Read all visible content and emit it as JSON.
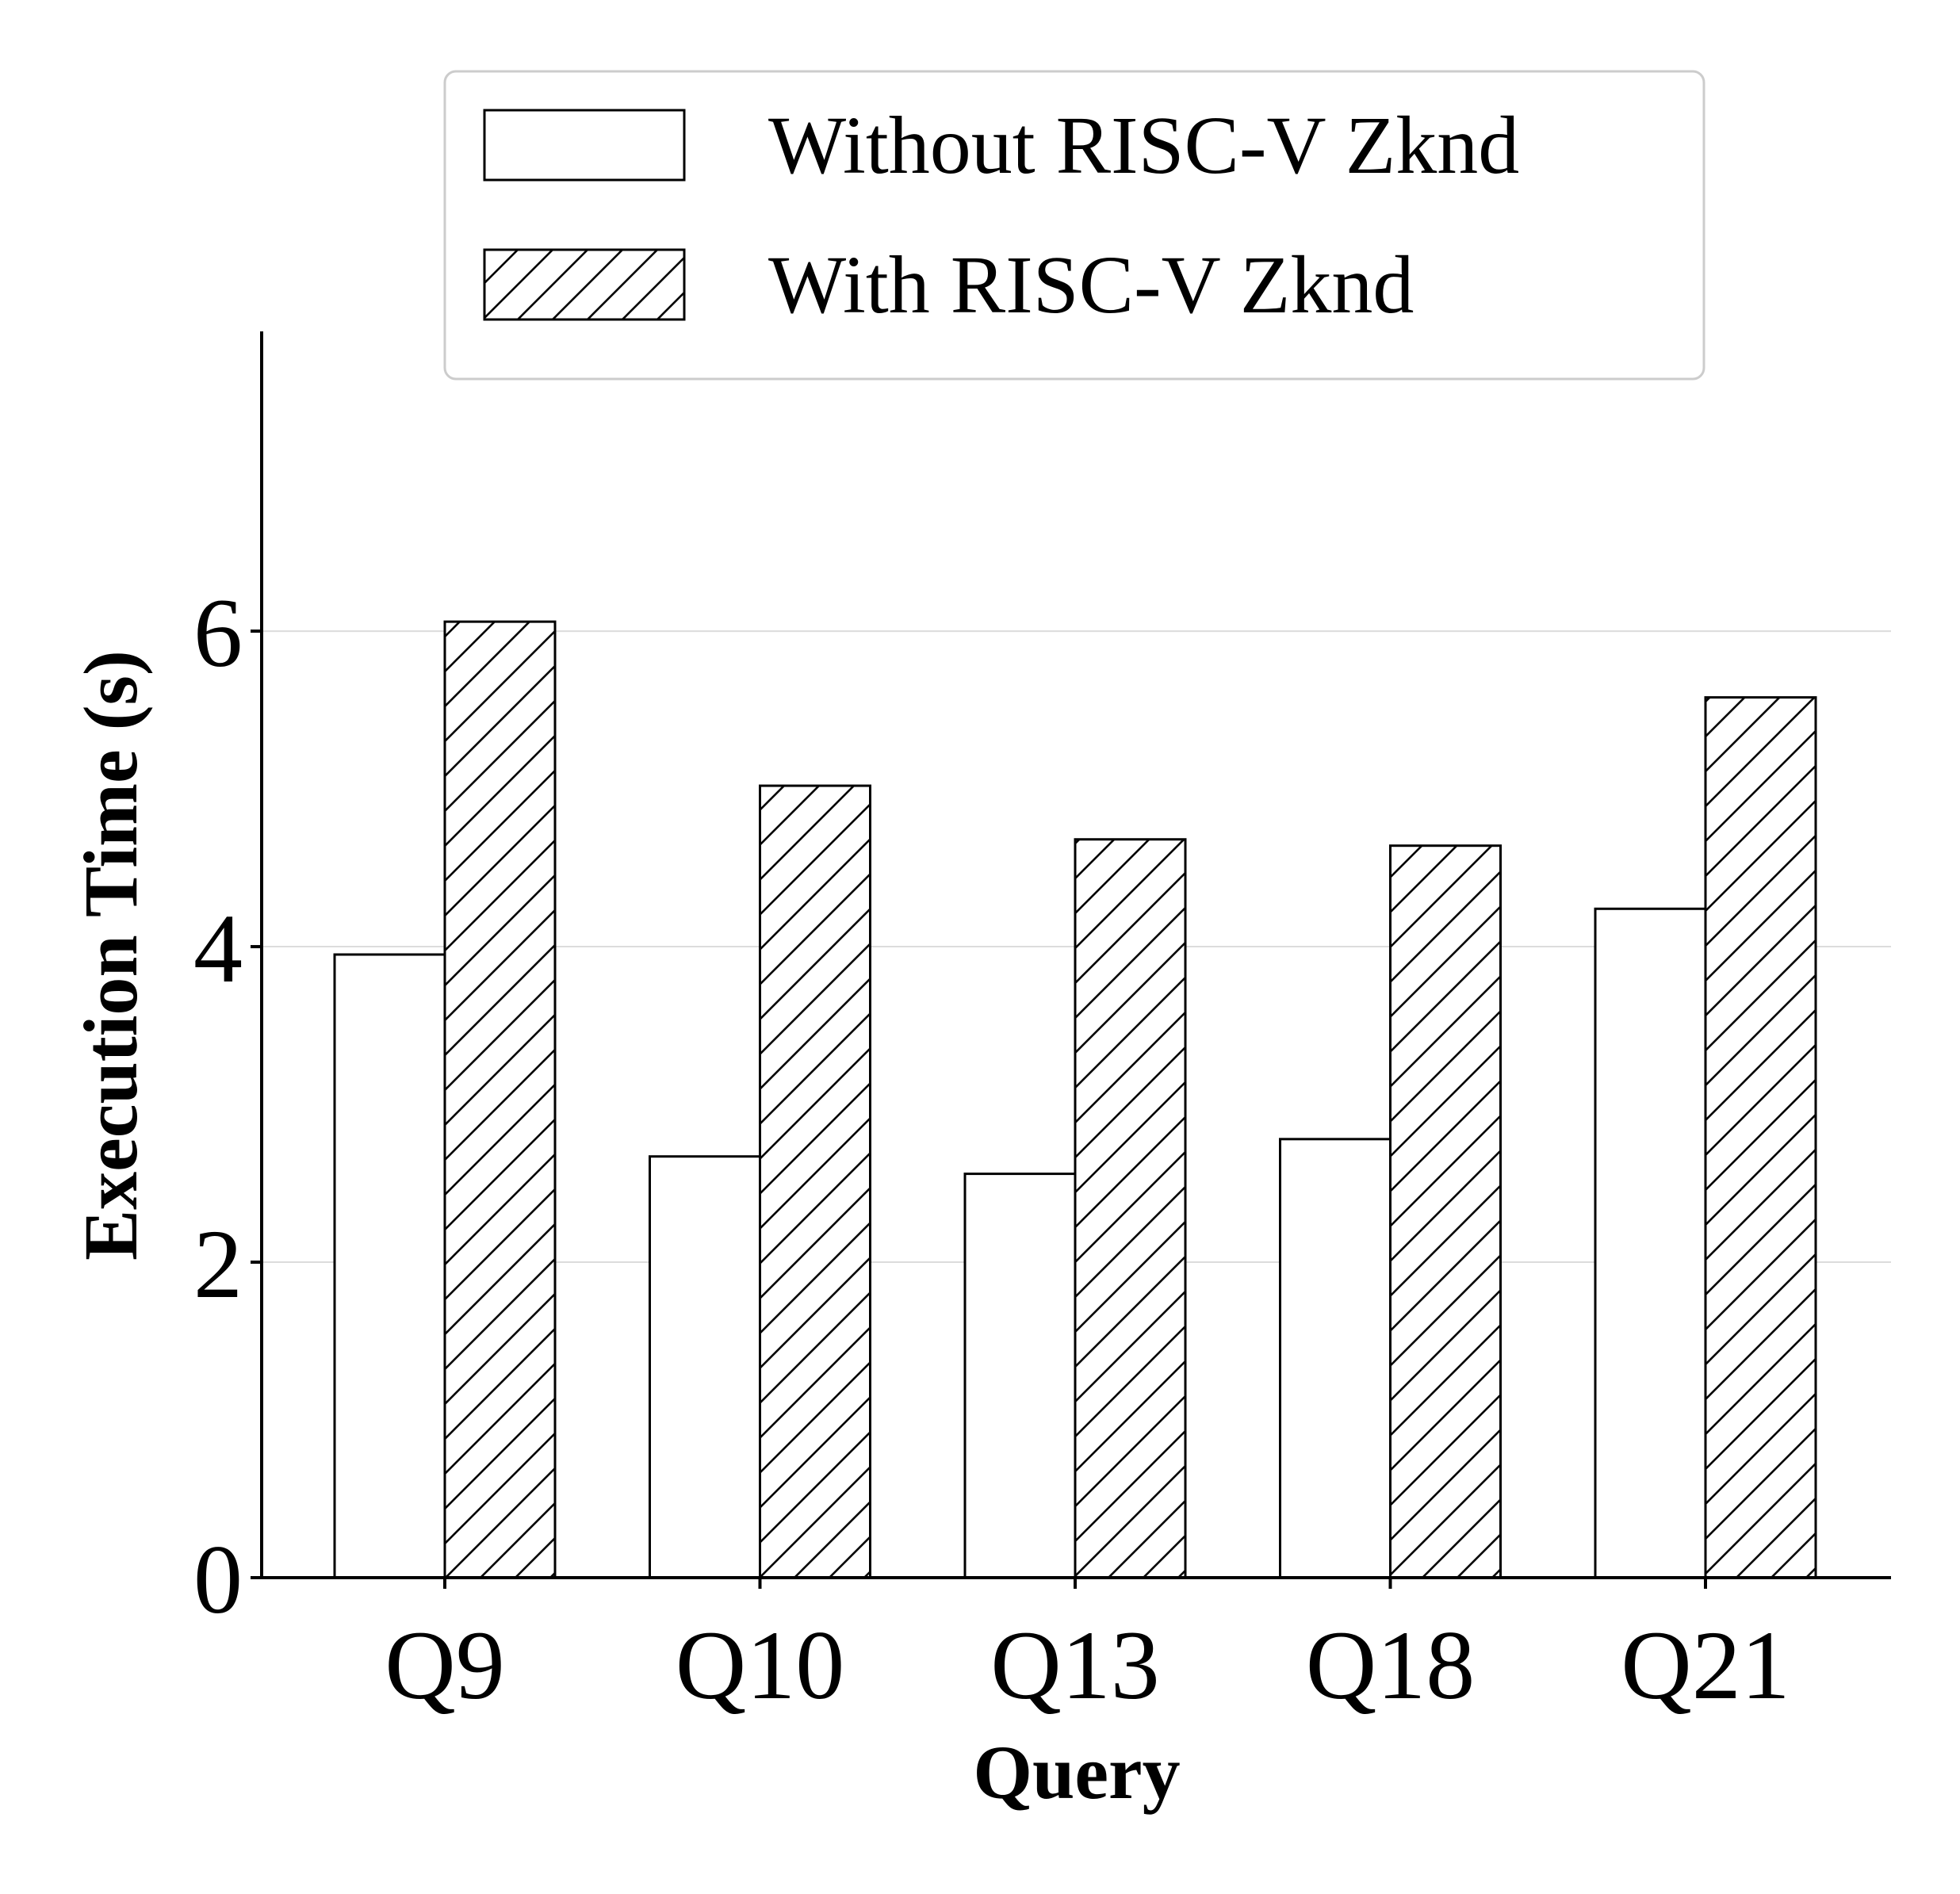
{
  "chart_data": {
    "type": "bar",
    "title": "",
    "xlabel": "Query",
    "ylabel": "Execution Time (s)",
    "categories": [
      "Q9",
      "Q10",
      "Q13",
      "Q18",
      "Q21"
    ],
    "series": [
      {
        "name": "Without RISC-V Zknd",
        "pattern": "solid",
        "fill": "#ffffff",
        "values": [
          3.95,
          2.67,
          2.56,
          2.78,
          4.24
        ]
      },
      {
        "name": "With RISC-V Zknd",
        "pattern": "hatch",
        "fill": "#ffffff",
        "values": [
          6.06,
          5.02,
          4.68,
          4.64,
          5.58
        ]
      }
    ],
    "ylim": [
      0,
      7.9
    ],
    "yticks": [
      0,
      2,
      4,
      6
    ],
    "ytick_labels": [
      "0",
      "2",
      "4",
      "6"
    ],
    "grid": true,
    "grid_axis": "y",
    "legend_position": "top-center",
    "colors": {
      "edge": "#000000",
      "grid": "#dcdcdc",
      "legend_frame": "#cccccc"
    }
  }
}
